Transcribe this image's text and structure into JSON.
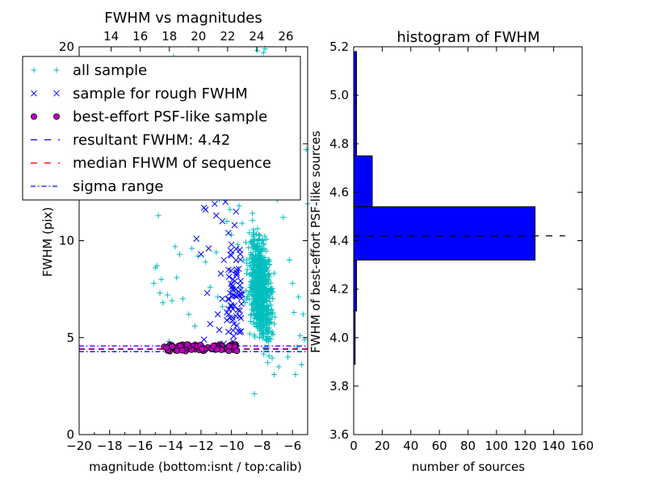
{
  "chart_data": [
    {
      "type": "scatter",
      "title": "FWHM vs magnitudes",
      "xlabel": "magnitude (bottom:isnt / top:calib)",
      "ylabel": "FWHM (pix)",
      "xlim": [
        -20,
        -5
      ],
      "ylim": [
        0,
        20
      ],
      "x_ticks": [
        "−20",
        "−18",
        "−16",
        "−14",
        "−12",
        "−10",
        "−8",
        "−6"
      ],
      "y_ticks": [
        "0",
        "5",
        "10",
        "15",
        "20"
      ],
      "top_xlim": [
        11.8,
        27.5
      ],
      "top_ticks": [
        "14",
        "16",
        "18",
        "20",
        "22",
        "24",
        "26"
      ],
      "grid": false,
      "legend_position": "upper-left",
      "legend": [
        "all sample",
        "sample for rough FWHM",
        "best-effort PSF-like sample",
        "resultant FWHM: 4.42",
        "median FHWM of sequence",
        "sigma range"
      ],
      "series": [
        {
          "name": "all sample",
          "marker": "+",
          "color": "#00bfbf",
          "points": [
            [
              -14.8,
              11.3
            ],
            [
              -14.9,
              8.7
            ],
            [
              -15.0,
              8.6
            ],
            [
              -14.6,
              8.0
            ],
            [
              -15.1,
              7.8
            ],
            [
              -14.7,
              7.3
            ],
            [
              -14.2,
              7.2
            ],
            [
              -14.5,
              6.8
            ],
            [
              -13.9,
              6.9
            ],
            [
              -13.6,
              8.1
            ],
            [
              -13.2,
              7.0
            ],
            [
              -12.8,
              6.2
            ],
            [
              -14.1,
              4.8
            ],
            [
              -13.3,
              4.6
            ],
            [
              -13.7,
              9.7
            ],
            [
              -13.4,
              9.3
            ],
            [
              -12.6,
              9.6
            ],
            [
              -12.2,
              9.2
            ],
            [
              -11.7,
              8.9
            ],
            [
              -11.4,
              7.6
            ],
            [
              -12.4,
              5.6
            ],
            [
              -11.0,
              9.4
            ],
            [
              -10.9,
              7.1
            ],
            [
              -10.6,
              6.6
            ],
            [
              -10.3,
              11.0
            ],
            [
              -10.1,
              11.6
            ],
            [
              -9.7,
              12.6
            ],
            [
              -13.8,
              19.5
            ],
            [
              -12.0,
              18.1
            ],
            [
              -10.6,
              16.2
            ],
            [
              -9.6,
              14.2
            ],
            [
              -11.2,
              13.7
            ],
            [
              -10.2,
              13.2
            ],
            [
              -10.8,
              12.1
            ],
            [
              -9.5,
              11.8
            ],
            [
              -10.0,
              10.3
            ],
            [
              -9.3,
              10.9
            ],
            [
              -9.6,
              9.8
            ],
            [
              -9.2,
              9.0
            ],
            [
              -9.0,
              8.3
            ],
            [
              -9.4,
              7.6
            ],
            [
              -9.1,
              6.8
            ],
            [
              -8.8,
              5.2
            ],
            [
              -8.5,
              2.1
            ],
            [
              -8.3,
              19.8
            ],
            [
              -7.9,
              19.7
            ],
            [
              -7.8,
              19.9
            ],
            [
              -8.4,
              14.1
            ],
            [
              -7.5,
              13.6
            ],
            [
              -7.0,
              12.1
            ],
            [
              -6.6,
              11.2
            ],
            [
              -6.2,
              9.0
            ],
            [
              -6.0,
              7.8
            ],
            [
              -5.6,
              7.1
            ],
            [
              -5.9,
              6.3
            ],
            [
              -5.3,
              6.2
            ],
            [
              -5.5,
              5.1
            ],
            [
              -5.2,
              4.9
            ],
            [
              -5.7,
              4.5
            ],
            [
              -5.4,
              3.6
            ],
            [
              -5.8,
              3.1
            ],
            [
              -6.3,
              4.0
            ],
            [
              -6.9,
              3.5
            ],
            [
              -5.1,
              14.7
            ],
            [
              -5.0,
              11.9
            ],
            [
              -7.2,
              3.1
            ]
          ],
          "cloud": {
            "x_range": [
              -9.2,
              -5.8
            ],
            "y_range": [
              3.2,
              15.0
            ],
            "center": [
              -8.1,
              7.5
            ],
            "count": 700
          }
        },
        {
          "name": "sample for rough FWHM",
          "marker": "x",
          "color": "#0000ff",
          "points": [
            [
              -11.8,
              11.7
            ],
            [
              -11.7,
              11.6
            ],
            [
              -11.0,
              11.3
            ],
            [
              -10.6,
              11.0
            ],
            [
              -10.2,
              10.4
            ],
            [
              -10.0,
              9.8
            ],
            [
              -11.5,
              9.6
            ],
            [
              -12.0,
              9.3
            ],
            [
              -10.5,
              9.0
            ],
            [
              -10.2,
              8.5
            ],
            [
              -9.9,
              8.0
            ],
            [
              -11.6,
              7.3
            ],
            [
              -10.6,
              7.0
            ],
            [
              -10.0,
              6.6
            ],
            [
              -10.9,
              6.2
            ],
            [
              -10.3,
              5.9
            ],
            [
              -11.4,
              5.7
            ],
            [
              -10.8,
              5.4
            ],
            [
              -10.2,
              5.3
            ],
            [
              -12.3,
              10.1
            ],
            [
              -10.4,
              12.0
            ],
            [
              -10.7,
              12.4
            ],
            [
              -11.1,
              11.9
            ],
            [
              -10.1,
              7.3
            ],
            [
              -10.7,
              8.3
            ],
            [
              -11.8,
              4.9
            ],
            [
              -10.5,
              4.7
            ],
            [
              -9.9,
              4.8
            ],
            [
              -9.8,
              10.8
            ],
            [
              -9.7,
              11.5
            ],
            [
              -10.3,
              6.3
            ]
          ],
          "cloud": {
            "x_range": [
              -10.2,
              -9.3
            ],
            "y_range": [
              5.0,
              9.6
            ],
            "center": [
              -9.7,
              7.5
            ],
            "count": 60
          }
        },
        {
          "name": "best-effort PSF-like sample",
          "marker": "o",
          "color": "#bf00bf",
          "band": {
            "x_range": [
              -14.6,
              -9.6
            ],
            "y_range": [
              4.3,
              4.65
            ],
            "count": 90
          }
        }
      ],
      "lines": [
        {
          "name": "resultant FWHM: 4.42",
          "y": 4.42,
          "style": "dashed",
          "color": "#0000ff"
        },
        {
          "name": "median FHWM of sequence",
          "y": 4.4,
          "style": "dashed",
          "color": "#ff0000"
        },
        {
          "name": "sigma range",
          "y": [
            4.28,
            4.57
          ],
          "style": "dashdot",
          "color": "#0000ff"
        }
      ]
    },
    {
      "type": "bar",
      "orientation": "horizontal",
      "title": "histogram of FWHM",
      "xlabel": "number of sources",
      "ylabel": "FWHM of best-effort PSF-like sources",
      "xlim": [
        0,
        160
      ],
      "ylim": [
        3.6,
        5.2
      ],
      "x_ticks": [
        "0",
        "20",
        "40",
        "60",
        "80",
        "100",
        "120",
        "140",
        "160"
      ],
      "y_ticks": [
        "3.6",
        "3.8",
        "4.0",
        "4.2",
        "4.4",
        "4.6",
        "4.8",
        "5.0",
        "5.2"
      ],
      "bar_color": "#0000ff",
      "bins": [
        {
          "y0": 3.89,
          "y1": 4.11,
          "count": 1
        },
        {
          "y0": 4.11,
          "y1": 4.32,
          "count": 2
        },
        {
          "y0": 4.32,
          "y1": 4.54,
          "count": 127
        },
        {
          "y0": 4.54,
          "y1": 4.75,
          "count": 13
        },
        {
          "y0": 4.75,
          "y1": 4.97,
          "count": 2
        },
        {
          "y0": 4.97,
          "y1": 5.18,
          "count": 2
        }
      ],
      "reference_line": {
        "y": 4.42,
        "x_range": [
          0,
          148
        ],
        "style": "dashed",
        "color": "#000000"
      }
    }
  ]
}
